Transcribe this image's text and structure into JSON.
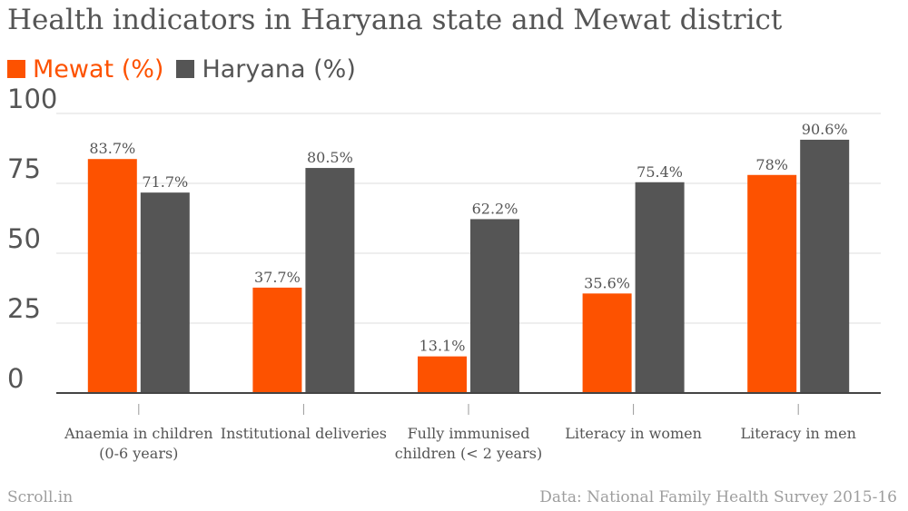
{
  "header": {
    "title": "Health indicators in Haryana state and Mewat district"
  },
  "colors": {
    "mewat": "#fd5200",
    "haryana": "#555555",
    "grid": "#dddddd",
    "text": "#555555",
    "axis": "#444444"
  },
  "chart_data": {
    "type": "bar",
    "categories": [
      [
        "Anaemia in children",
        "(0-6 years)"
      ],
      [
        "Institutional deliveries"
      ],
      [
        "Fully immunised",
        "children (< 2 years)"
      ],
      [
        "Literacy in women"
      ],
      [
        "Literacy in men"
      ]
    ],
    "series": [
      {
        "name": "Mewat (%)",
        "values": [
          83.7,
          37.7,
          13.1,
          35.6,
          78
        ],
        "labels": [
          "83.7%",
          "37.7%",
          "13.1%",
          "35.6%",
          "78%"
        ]
      },
      {
        "name": "Haryana (%)",
        "values": [
          71.7,
          80.5,
          62.2,
          75.4,
          90.6
        ],
        "labels": [
          "71.7%",
          "80.5%",
          "62.2%",
          "75.4%",
          "90.6%"
        ]
      }
    ],
    "ylim": [
      0,
      100
    ],
    "yticks": [
      0,
      25,
      50,
      75,
      100
    ],
    "grid": true,
    "legend": "top-left"
  },
  "footer": {
    "brand": "Scroll.in",
    "source": "Data: National Family Health Survey 2015-16"
  }
}
